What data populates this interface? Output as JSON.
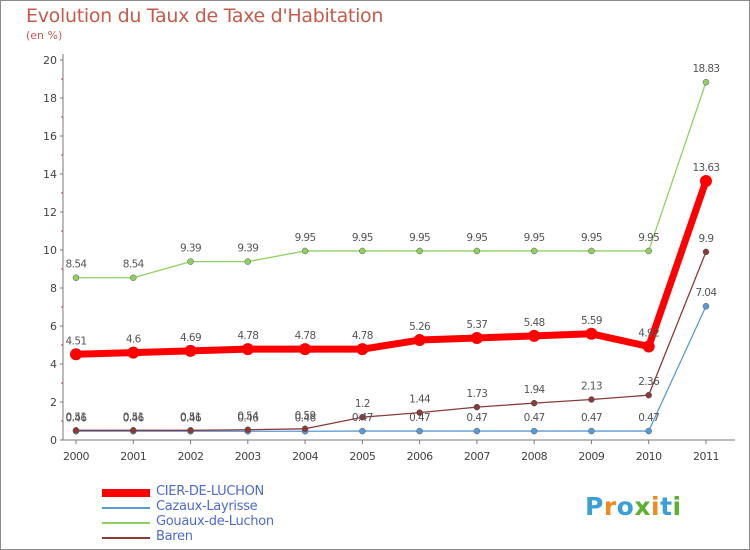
{
  "chart_data": {
    "type": "line",
    "title": "Evolution du Taux de Taxe d'Habitation",
    "subtitle": "(en %)",
    "x": [
      "2000",
      "2001",
      "2002",
      "2003",
      "2004",
      "2005",
      "2006",
      "2007",
      "2008",
      "2009",
      "2010",
      "2011"
    ],
    "y_ticks": [
      "0",
      "2",
      "4",
      "6",
      "8",
      "10",
      "12",
      "14",
      "16",
      "18",
      "20"
    ],
    "ylim": [
      0,
      20
    ],
    "grid": false,
    "legend_position": "bottom-left",
    "series": [
      {
        "name": "CIER-DE-LUCHON",
        "color": "#ff0000",
        "values": [
          4.51,
          4.6,
          4.69,
          4.78,
          4.78,
          4.78,
          5.26,
          5.37,
          5.48,
          5.59,
          4.92,
          13.63
        ],
        "labels": [
          "4.51",
          "4.6",
          "4.69",
          "4.78",
          "4.78",
          "4.78",
          "5.26",
          "5.37",
          "5.48",
          "5.59",
          "4.92",
          "13.63"
        ]
      },
      {
        "name": "Cazaux-Layrisse",
        "color": "#5b9bd5",
        "values": [
          0.46,
          0.46,
          0.46,
          0.46,
          0.46,
          0.47,
          0.47,
          0.47,
          0.47,
          0.47,
          0.47,
          7.04
        ],
        "labels": [
          "0.46",
          "0.46",
          "0.46",
          "0.46",
          "0.46",
          "0.47",
          "0.47",
          "0.47",
          "0.47",
          "0.47",
          "0.47",
          "7.04"
        ]
      },
      {
        "name": "Gouaux-de-Luchon",
        "color": "#8fd160",
        "values": [
          8.54,
          8.54,
          9.39,
          9.39,
          9.95,
          9.95,
          9.95,
          9.95,
          9.95,
          9.95,
          9.95,
          18.83
        ],
        "labels": [
          "8.54",
          "8.54",
          "9.39",
          "9.39",
          "9.95",
          "9.95",
          "9.95",
          "9.95",
          "9.95",
          "9.95",
          "9.95",
          "18.83"
        ]
      },
      {
        "name": "Baren",
        "color": "#8b3a3a",
        "values": [
          0.51,
          0.51,
          0.51,
          0.54,
          0.59,
          1.2,
          1.44,
          1.73,
          1.94,
          2.13,
          2.36,
          9.9
        ],
        "labels": [
          "0.51",
          "0.51",
          "0.51",
          "0.54",
          "0.59",
          "1.2",
          "1.44",
          "1.73",
          "1.94",
          "2.13",
          "2.36",
          "9.9"
        ]
      }
    ]
  },
  "logo": {
    "text": "Proxiti",
    "colors": [
      "#3aa0d8",
      "#f08a1c",
      "#3aa0d8",
      "#5bb030",
      "#f08a1c",
      "#3aa0d8",
      "#5bb030"
    ]
  }
}
